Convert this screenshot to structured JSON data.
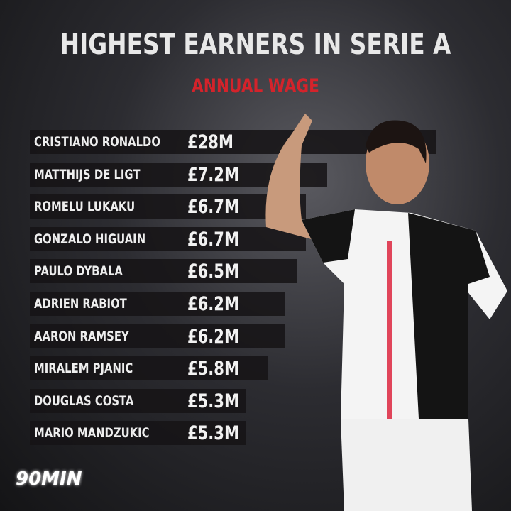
{
  "chart_data": {
    "type": "bar",
    "orientation": "horizontal",
    "title": "HIGHEST EARNERS IN SERIE A",
    "subtitle": "ANNUAL WAGE",
    "categories": [
      "CRISTIANO RONALDO",
      "MATTHIJS DE LIGT",
      "ROMELU LUKAKU",
      "GONZALO HIGUAIN",
      "PAULO DYBALA",
      "ADRIEN RABIOT",
      "AARON RAMSEY",
      "MIRALEM PJANIC",
      "DOUGLAS COSTA",
      "MARIO MANDZUKIC"
    ],
    "values": [
      28,
      7.2,
      6.7,
      6.7,
      6.5,
      6.2,
      6.2,
      5.8,
      5.3,
      5.3
    ],
    "labels": [
      "£28M",
      "£7.2M",
      "£6.7M",
      "£6.7M",
      "£6.5M",
      "£6.2M",
      "£6.2M",
      "£5.8M",
      "£5.3M",
      "£5.3M"
    ],
    "unit": "£M",
    "colors": {
      "bar": "#161416",
      "title": "#e8e8e8",
      "subtitle": "#d4232b"
    }
  },
  "brand": {
    "logo": "90MIN"
  }
}
